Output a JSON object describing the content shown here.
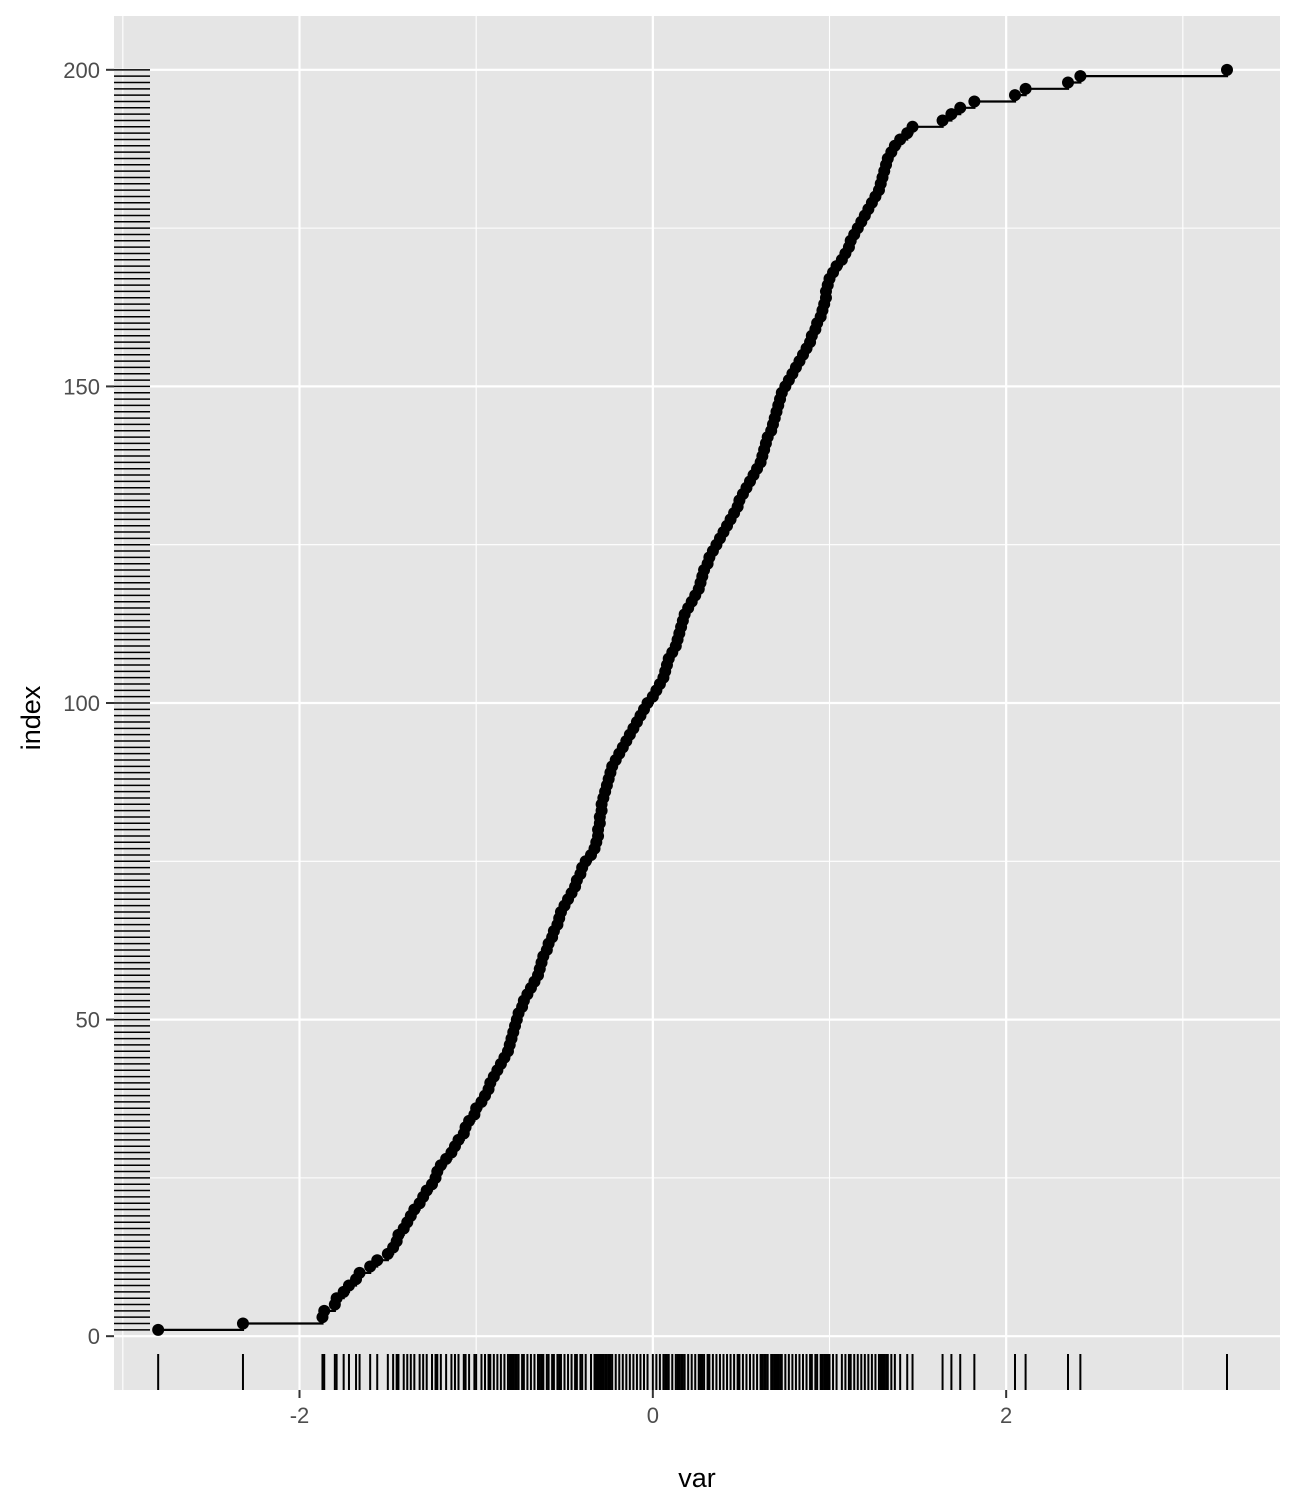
{
  "chart_data": {
    "type": "step",
    "xlabel": "var",
    "ylabel": "index",
    "xlim": [
      -3.05,
      3.55
    ],
    "ylim": [
      -8.5,
      208.5
    ],
    "x_ticks": [
      -2,
      0,
      2
    ],
    "x_tick_labels": [
      "-2",
      "0",
      "2"
    ],
    "y_ticks": [
      0,
      50,
      100,
      150,
      200
    ],
    "y_tick_labels": [
      "0",
      "50",
      "100",
      "150",
      "200"
    ],
    "grid": true,
    "rugs": [
      "bottom",
      "left"
    ],
    "n_points": 200,
    "colors": {
      "panel": "#e5e5e5",
      "grid": "#ffffff",
      "marks": "#000000",
      "tick_text": "#4d4d4d"
    },
    "x_sorted": [
      -2.8,
      -2.32,
      -1.87,
      -1.86,
      -1.8,
      -1.79,
      -1.75,
      -1.72,
      -1.68,
      -1.66,
      -1.6,
      -1.56,
      -1.5,
      -1.47,
      -1.45,
      -1.44,
      -1.41,
      -1.39,
      -1.37,
      -1.35,
      -1.32,
      -1.3,
      -1.28,
      -1.25,
      -1.23,
      -1.22,
      -1.2,
      -1.17,
      -1.14,
      -1.12,
      -1.1,
      -1.07,
      -1.06,
      -1.04,
      -1.01,
      -1.0,
      -0.97,
      -0.95,
      -0.93,
      -0.92,
      -0.9,
      -0.88,
      -0.86,
      -0.84,
      -0.82,
      -0.81,
      -0.8,
      -0.79,
      -0.78,
      -0.77,
      -0.76,
      -0.74,
      -0.73,
      -0.71,
      -0.69,
      -0.67,
      -0.65,
      -0.64,
      -0.63,
      -0.62,
      -0.6,
      -0.59,
      -0.57,
      -0.56,
      -0.54,
      -0.53,
      -0.52,
      -0.5,
      -0.48,
      -0.46,
      -0.44,
      -0.43,
      -0.41,
      -0.4,
      -0.38,
      -0.35,
      -0.33,
      -0.32,
      -0.31,
      -0.31,
      -0.3,
      -0.3,
      -0.29,
      -0.29,
      -0.28,
      -0.27,
      -0.26,
      -0.25,
      -0.24,
      -0.23,
      -0.21,
      -0.19,
      -0.17,
      -0.15,
      -0.13,
      -0.11,
      -0.09,
      -0.07,
      -0.05,
      -0.03,
      0.0,
      0.02,
      0.04,
      0.06,
      0.07,
      0.08,
      0.09,
      0.11,
      0.13,
      0.14,
      0.15,
      0.16,
      0.17,
      0.18,
      0.2,
      0.22,
      0.24,
      0.26,
      0.27,
      0.28,
      0.29,
      0.31,
      0.32,
      0.34,
      0.36,
      0.38,
      0.4,
      0.42,
      0.44,
      0.46,
      0.48,
      0.49,
      0.51,
      0.53,
      0.55,
      0.57,
      0.59,
      0.61,
      0.62,
      0.63,
      0.64,
      0.65,
      0.67,
      0.68,
      0.69,
      0.7,
      0.71,
      0.72,
      0.73,
      0.75,
      0.77,
      0.79,
      0.81,
      0.83,
      0.85,
      0.87,
      0.89,
      0.9,
      0.92,
      0.93,
      0.95,
      0.96,
      0.97,
      0.98,
      0.98,
      0.99,
      1.0,
      1.02,
      1.04,
      1.07,
      1.09,
      1.11,
      1.12,
      1.14,
      1.16,
      1.18,
      1.2,
      1.22,
      1.24,
      1.26,
      1.28,
      1.29,
      1.3,
      1.31,
      1.32,
      1.33,
      1.35,
      1.37,
      1.4,
      1.44,
      1.47,
      1.64,
      1.69,
      1.74,
      1.82,
      2.05,
      2.11,
      2.35,
      2.42,
      3.25
    ]
  }
}
